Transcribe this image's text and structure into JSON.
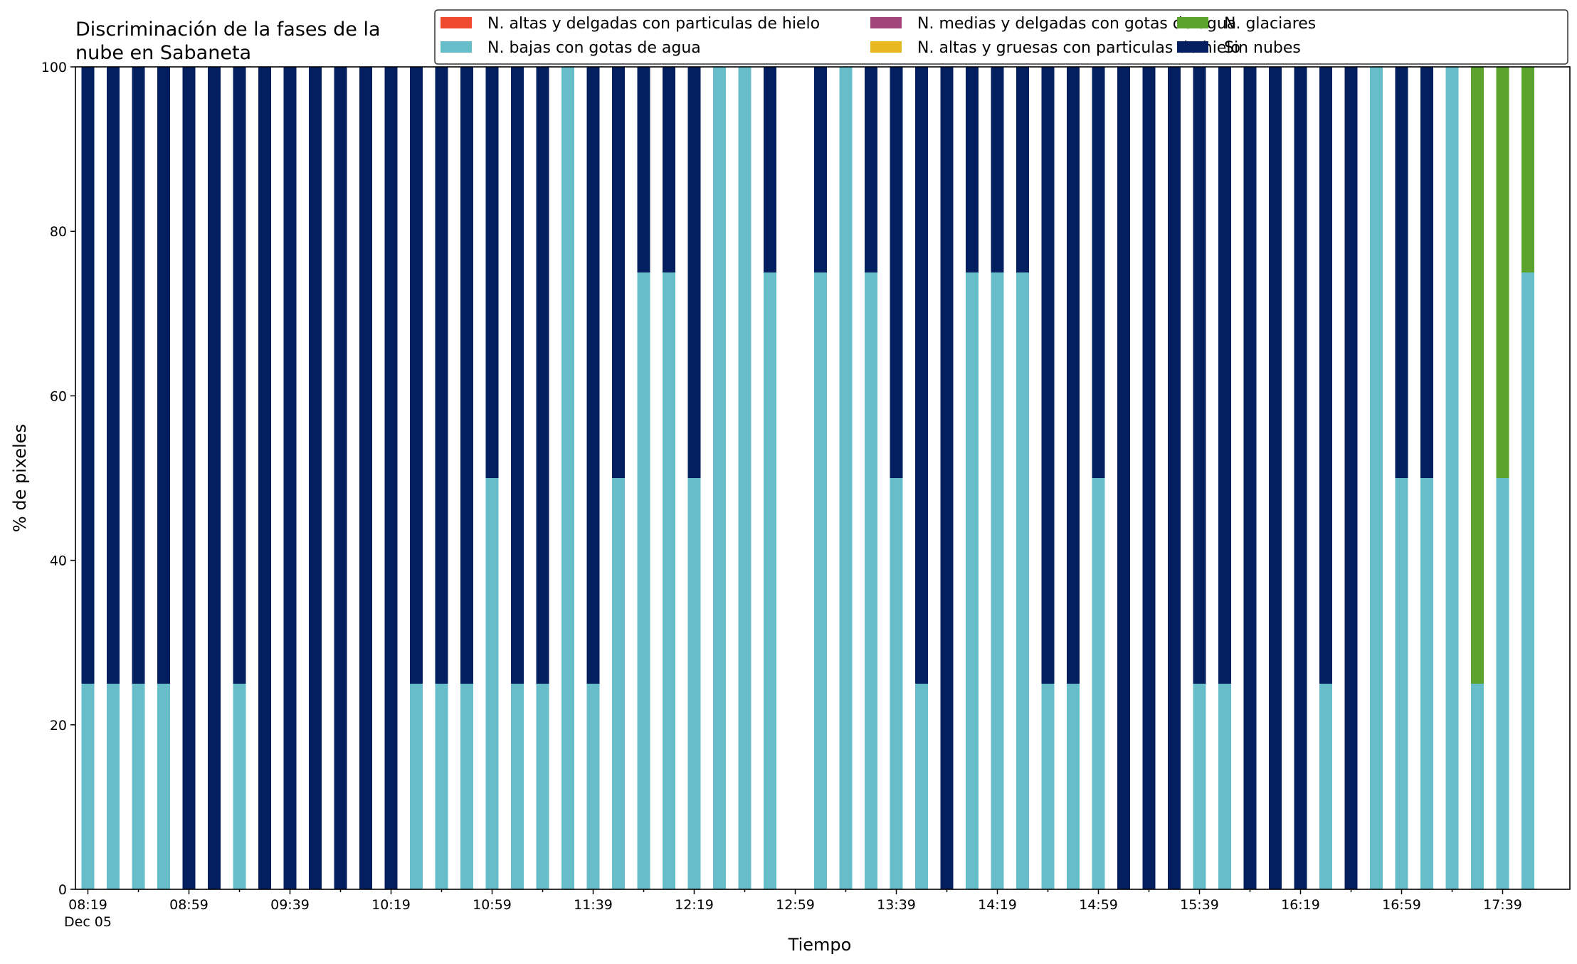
{
  "chart_data": {
    "type": "bar",
    "stacked": true,
    "title_lines": [
      "Discriminación de la fases de la",
      "nube en Sabaneta"
    ],
    "xlabel": "Tiempo",
    "ylabel": "% de pixeles",
    "ylim": [
      0,
      100
    ],
    "yticks": [
      0,
      20,
      40,
      60,
      80,
      100
    ],
    "xtick_labels": [
      "08:19",
      "08:59",
      "09:39",
      "10:19",
      "10:59",
      "11:39",
      "12:19",
      "12:59",
      "13:39",
      "14:19",
      "14:59",
      "15:39",
      "16:19",
      "16:59",
      "17:39"
    ],
    "xtick_date": "Dec 05",
    "legend_position": "top",
    "colors": {
      "altas_delgadas": "#ef4a30",
      "altas_gruesas": "#e8b820",
      "medias_delgadas": "#a3457a",
      "bajas": "#67bdc9",
      "glaciares": "#5ca32e",
      "sin_nubes": "#041f5f"
    },
    "legend": [
      {
        "key": "altas_delgadas",
        "label": "N. altas y delgadas con particulas de hielo"
      },
      {
        "key": "bajas",
        "label": "N. bajas con gotas de agua"
      },
      {
        "key": "medias_delgadas",
        "label": "N. medias y delgadas con gotas de agua"
      },
      {
        "key": "altas_gruesas",
        "label": "N. altas y gruesas con particulas de hielo"
      },
      {
        "key": "glaciares",
        "label": "N. glaciares"
      },
      {
        "key": "sin_nubes",
        "label": "Sin nubes"
      }
    ],
    "stack_order": [
      "bajas",
      "glaciares",
      "sin_nubes"
    ],
    "x": [
      "08:19",
      "08:29",
      "08:39",
      "08:49",
      "08:59",
      "09:09",
      "09:19",
      "09:29",
      "09:39",
      "09:49",
      "09:59",
      "10:09",
      "10:19",
      "10:29",
      "10:39",
      "10:49",
      "10:59",
      "11:09",
      "11:19",
      "11:29",
      "11:39",
      "11:49",
      "11:59",
      "12:09",
      "12:19",
      "12:29",
      "12:39",
      "12:49",
      "12:59",
      "13:09",
      "13:19",
      "13:29",
      "13:39",
      "13:49",
      "13:59",
      "14:09",
      "14:19",
      "14:29",
      "14:39",
      "14:49",
      "14:59",
      "15:09",
      "15:19",
      "15:29",
      "15:39",
      "15:49",
      "15:59",
      "16:09",
      "16:19",
      "16:29",
      "16:39",
      "16:49",
      "16:59",
      "17:09",
      "17:19",
      "17:29",
      "17:39",
      "17:49"
    ],
    "series": [
      {
        "key": "bajas",
        "name": "N. bajas con gotas de agua",
        "values": [
          25,
          25,
          25,
          25,
          0,
          0,
          25,
          0,
          0,
          0,
          0,
          0,
          0,
          25,
          25,
          25,
          50,
          25,
          25,
          100,
          25,
          50,
          75,
          75,
          50,
          100,
          100,
          75,
          null,
          75,
          100,
          75,
          50,
          25,
          0,
          75,
          75,
          75,
          25,
          25,
          50,
          0,
          0,
          0,
          25,
          25,
          0,
          0,
          0,
          25,
          0,
          100,
          50,
          50,
          100,
          25,
          50,
          75
        ]
      },
      {
        "key": "glaciares",
        "name": "N. glaciares",
        "values": [
          0,
          0,
          0,
          0,
          0,
          0,
          0,
          0,
          0,
          0,
          0,
          0,
          0,
          0,
          0,
          0,
          0,
          0,
          0,
          0,
          0,
          0,
          0,
          0,
          0,
          0,
          0,
          0,
          null,
          0,
          0,
          0,
          0,
          0,
          0,
          0,
          0,
          0,
          0,
          0,
          0,
          0,
          0,
          0,
          0,
          0,
          0,
          0,
          0,
          0,
          0,
          0,
          0,
          0,
          0,
          75,
          50,
          25
        ]
      },
      {
        "key": "sin_nubes",
        "name": "Sin nubes",
        "values": [
          75,
          75,
          75,
          75,
          100,
          100,
          75,
          100,
          100,
          100,
          100,
          100,
          100,
          75,
          75,
          75,
          50,
          75,
          75,
          0,
          75,
          50,
          25,
          25,
          50,
          0,
          0,
          25,
          null,
          25,
          0,
          25,
          50,
          75,
          100,
          25,
          25,
          25,
          75,
          75,
          50,
          100,
          100,
          100,
          75,
          75,
          100,
          100,
          100,
          75,
          100,
          0,
          50,
          50,
          0,
          0,
          0,
          0
        ]
      }
    ]
  }
}
